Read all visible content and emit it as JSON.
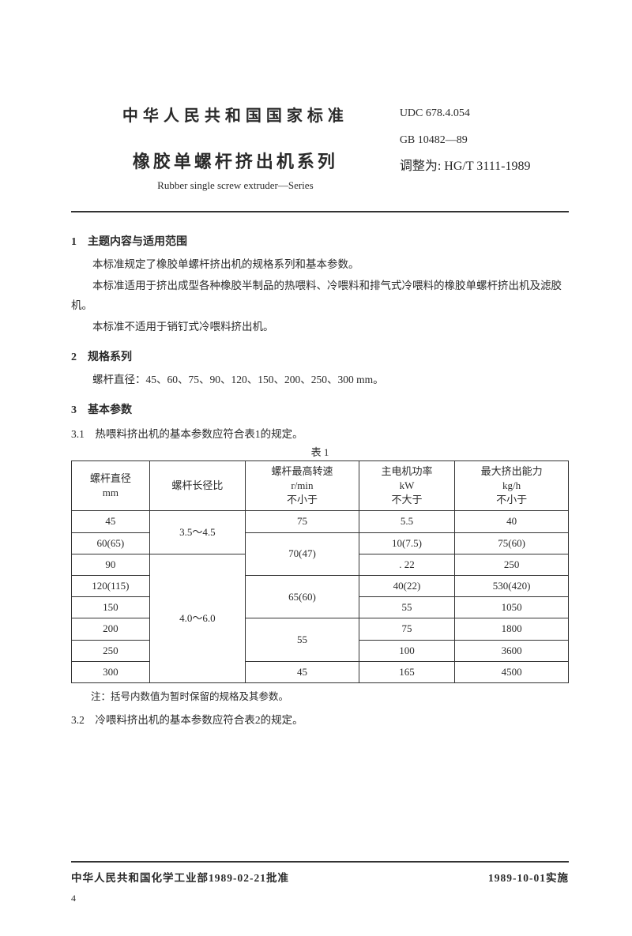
{
  "header": {
    "org": "中华人民共和国国家标准",
    "title": "橡胶单螺杆挤出机系列",
    "subtitle": "Rubber single screw extruder—Series",
    "udc": "UDC 678.4.054",
    "gb": "GB 10482—89",
    "handnote": "调整为: HG/T 3111-1989"
  },
  "s1": {
    "h": "1　主题内容与适用范围",
    "p1": "本标准规定了橡胶单螺杆挤出机的规格系列和基本参数。",
    "p2": "本标准适用于挤出成型各种橡胶半制品的热喂料、冷喂料和排气式冷喂料的橡胶单螺杆挤出机及滤胶机。",
    "p3": "本标准不适用于销钉式冷喂料挤出机。"
  },
  "s2": {
    "h": "2　规格系列",
    "p1": "螺杆直径：45、60、75、90、120、150、200、250、300 mm。"
  },
  "s3": {
    "h": "3　基本参数",
    "p31": "3.1　热喂料挤出机的基本参数应符合表1的规定。",
    "cap": "表 1",
    "th": {
      "c1a": "螺杆直径",
      "c1b": "mm",
      "c2": "螺杆长径比",
      "c3a": "螺杆最高转速",
      "c3b": "r/min",
      "c3c": "不小于",
      "c4a": "主电机功率",
      "c4b": "kW",
      "c4c": "不大于",
      "c5a": "最大挤出能力",
      "c5b": "kg/h",
      "c5c": "不小于"
    },
    "rows": {
      "r1": {
        "dia": "45",
        "ratio": "3.5～4.5",
        "rpm": "75",
        "kw": "5.5",
        "cap": "40"
      },
      "r2": {
        "dia": "60(65)",
        "rpm": "70(47)",
        "kw": "10(7.5)",
        "cap": "75(60)"
      },
      "r3": {
        "dia": "90",
        "ratio": "4.0～6.0",
        "kw": ". 22",
        "cap": "250"
      },
      "r4": {
        "dia": "120(115)",
        "rpm": "65(60)",
        "kw": "40(22)",
        "cap": "530(420)"
      },
      "r5": {
        "dia": "150",
        "kw": "55",
        "cap": "1050"
      },
      "r6": {
        "dia": "200",
        "rpm": "55",
        "kw": "75",
        "cap": "1800"
      },
      "r7": {
        "dia": "250",
        "kw": "100",
        "cap": "3600"
      },
      "r8": {
        "dia": "300",
        "rpm": "45",
        "kw": "165",
        "cap": "4500"
      }
    },
    "note": "注：括号内数值为暂时保留的规格及其参数。",
    "p32": "3.2　冷喂料挤出机的基本参数应符合表2的规定。"
  },
  "footer": {
    "left": "中华人民共和国化学工业部1989-02-21批准",
    "right": "1989-10-01实施",
    "page": "4"
  }
}
